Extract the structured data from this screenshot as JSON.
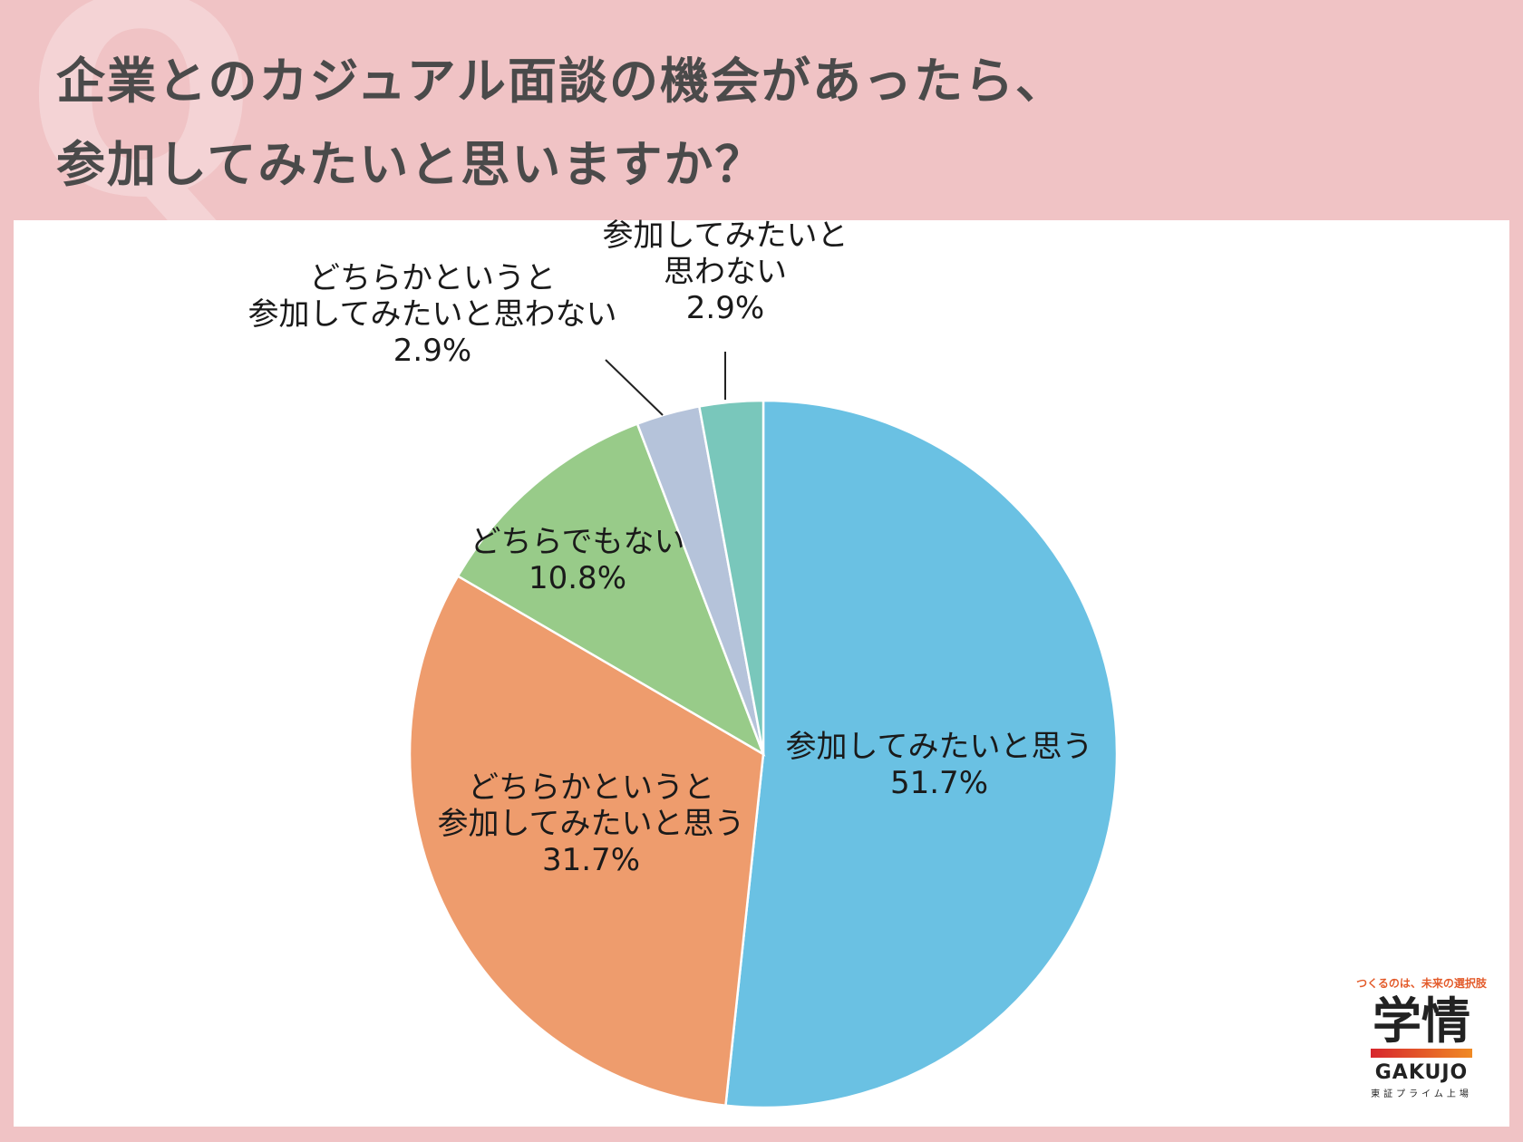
{
  "header": {
    "title_line1": "企業とのカジュアル面談の機会があったら、",
    "title_line2": "参加してみたいと思いますか？"
  },
  "chart_data": {
    "type": "pie",
    "categories": [
      "参加してみたいと思う",
      "どちらかというと参加してみたいと思う",
      "どちらでもない",
      "どちらかというと参加してみたいと思わない",
      "参加してみたいと思わない"
    ],
    "values": [
      51.7,
      31.7,
      10.8,
      2.9,
      2.9
    ],
    "start": "12 o'clock",
    "direction": "clockwise",
    "slice_colors": [
      "#6ac1e3",
      "#ee9c6d",
      "#98cb89",
      "#b5c3da",
      "#79c7bb"
    ],
    "labels": [
      {
        "lines": [
          "参加してみたいと思う"
        ],
        "value": "51.7%"
      },
      {
        "lines": [
          "どちらかというと",
          "参加してみたいと思う"
        ],
        "value": "31.7%"
      },
      {
        "lines": [
          "どちらでもない"
        ],
        "value": "10.8%"
      },
      {
        "lines": [
          "どちらかというと",
          "参加してみたいと思わない"
        ],
        "value": "2.9%"
      },
      {
        "lines": [
          "参加してみたいと",
          "思わない"
        ],
        "value": "2.9%"
      }
    ]
  },
  "logo": {
    "tagline": "つくるのは、未来の選択肢",
    "brand": "学情",
    "roman": "GAKUJO",
    "listing": "東証プライム上場"
  }
}
